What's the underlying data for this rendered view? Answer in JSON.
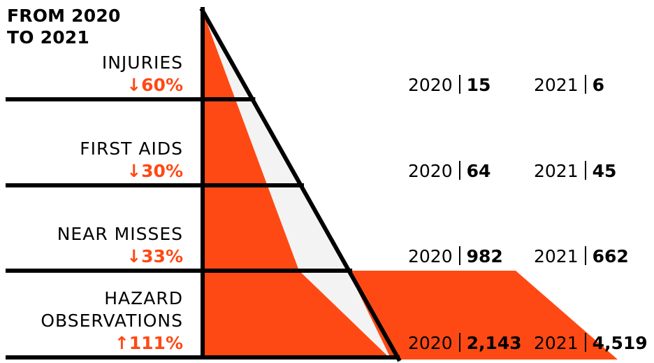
{
  "title": [
    "FROM 2020",
    "TO 2021"
  ],
  "colors": {
    "accent": "#ff4914",
    "light": "#f3f3f3",
    "ink": "#000000"
  },
  "chart_data": {
    "type": "pyramid",
    "title": "FROM 2020 TO 2021",
    "years": [
      "2020",
      "2021"
    ],
    "categories": [
      {
        "label": [
          "INJURIES"
        ],
        "change": "↓60%",
        "v2020": 15,
        "v2021": 6,
        "display2020": "15",
        "display2021": "6"
      },
      {
        "label": [
          "FIRST AIDS"
        ],
        "change": "↓30%",
        "v2020": 64,
        "v2021": 45,
        "display2020": "64",
        "display2021": "45"
      },
      {
        "label": [
          "NEAR MISSES"
        ],
        "change": "↓33%",
        "v2020": 982,
        "v2021": 662,
        "display2020": "982",
        "display2021": "662"
      },
      {
        "label": [
          "HAZARD",
          "OBSERVATIONS"
        ],
        "change": "↑111%",
        "v2020": 2143,
        "v2021": 4519,
        "display2020": "2,143",
        "display2021": "4,519"
      }
    ]
  }
}
